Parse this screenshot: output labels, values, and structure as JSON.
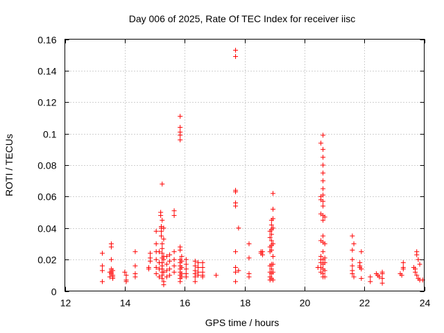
{
  "chart_data": {
    "type": "scatter",
    "title": "Day 006 of 2025, Rate Of TEC Index for receiver iisc",
    "xlabel": "GPS time / hours",
    "ylabel": "ROTI / TECUs",
    "xlim": [
      12,
      24
    ],
    "ylim": [
      0,
      0.16
    ],
    "x_ticks": [
      12,
      14,
      16,
      18,
      20,
      22,
      24
    ],
    "x_tick_labels": [
      "12",
      "14",
      "16",
      "18",
      "20",
      "22",
      "24"
    ],
    "y_ticks": [
      0,
      0.02,
      0.04,
      0.06,
      0.08,
      0.1,
      0.12,
      0.14,
      0.16
    ],
    "y_tick_labels": [
      "0",
      "0.02",
      "0.04",
      "0.06",
      "0.08",
      "0.1",
      "0.12",
      "0.14",
      "0.16"
    ],
    "grid": true,
    "marker": "+",
    "color": "#ff0000",
    "series": [
      {
        "name": "ROTI",
        "points": [
          [
            13.25,
            0.024
          ],
          [
            13.25,
            0.016
          ],
          [
            13.25,
            0.013
          ],
          [
            13.25,
            0.006
          ],
          [
            13.55,
            0.03
          ],
          [
            13.55,
            0.028
          ],
          [
            13.55,
            0.02
          ],
          [
            13.55,
            0.014
          ],
          [
            13.55,
            0.012
          ],
          [
            13.55,
            0.011
          ],
          [
            13.6,
            0.013
          ],
          [
            13.6,
            0.01
          ],
          [
            13.6,
            0.009
          ],
          [
            13.6,
            0.008
          ],
          [
            13.5,
            0.012
          ],
          [
            13.5,
            0.009
          ],
          [
            14.05,
            0.01
          ],
          [
            14.05,
            0.007
          ],
          [
            14.05,
            0.006
          ],
          [
            14.0,
            0.012
          ],
          [
            14.35,
            0.025
          ],
          [
            14.35,
            0.016
          ],
          [
            14.35,
            0.011
          ],
          [
            14.35,
            0.009
          ],
          [
            14.8,
            0.015
          ],
          [
            14.8,
            0.014
          ],
          [
            14.85,
            0.024
          ],
          [
            14.85,
            0.021
          ],
          [
            14.85,
            0.019
          ],
          [
            15.05,
            0.038
          ],
          [
            15.05,
            0.03
          ],
          [
            15.05,
            0.025
          ],
          [
            15.05,
            0.02
          ],
          [
            15.05,
            0.015
          ],
          [
            15.05,
            0.011
          ],
          [
            15.2,
            0.05
          ],
          [
            15.2,
            0.048
          ],
          [
            15.22,
            0.041
          ],
          [
            15.22,
            0.04
          ],
          [
            15.22,
            0.038
          ],
          [
            15.22,
            0.035
          ],
          [
            15.25,
            0.068
          ],
          [
            15.25,
            0.045
          ],
          [
            15.25,
            0.03
          ],
          [
            15.25,
            0.027
          ],
          [
            15.25,
            0.024
          ],
          [
            15.25,
            0.021
          ],
          [
            15.25,
            0.018
          ],
          [
            15.25,
            0.016
          ],
          [
            15.25,
            0.014
          ],
          [
            15.25,
            0.012
          ],
          [
            15.25,
            0.01
          ],
          [
            15.25,
            0.008
          ],
          [
            15.3,
            0.04
          ],
          [
            15.3,
            0.033
          ],
          [
            15.3,
            0.022
          ],
          [
            15.3,
            0.02
          ],
          [
            15.3,
            0.012
          ],
          [
            15.3,
            0.006
          ],
          [
            15.3,
            0.004
          ],
          [
            15.15,
            0.025
          ],
          [
            15.15,
            0.018
          ],
          [
            15.15,
            0.014
          ],
          [
            15.15,
            0.009
          ],
          [
            15.4,
            0.022
          ],
          [
            15.4,
            0.017
          ],
          [
            15.4,
            0.013
          ],
          [
            15.4,
            0.009
          ],
          [
            15.5,
            0.023
          ],
          [
            15.5,
            0.019
          ],
          [
            15.5,
            0.014
          ],
          [
            15.5,
            0.01
          ],
          [
            15.65,
            0.051
          ],
          [
            15.65,
            0.048
          ],
          [
            15.65,
            0.025
          ],
          [
            15.65,
            0.02
          ],
          [
            15.65,
            0.016
          ],
          [
            15.65,
            0.012
          ],
          [
            15.85,
            0.111
          ],
          [
            15.85,
            0.104
          ],
          [
            15.85,
            0.101
          ],
          [
            15.85,
            0.099
          ],
          [
            15.85,
            0.096
          ],
          [
            15.85,
            0.028
          ],
          [
            15.85,
            0.026
          ],
          [
            15.85,
            0.02
          ],
          [
            15.85,
            0.018
          ],
          [
            15.85,
            0.016
          ],
          [
            15.85,
            0.014
          ],
          [
            15.85,
            0.012
          ],
          [
            15.85,
            0.01
          ],
          [
            15.85,
            0.008
          ],
          [
            15.85,
            0.006
          ],
          [
            15.9,
            0.022
          ],
          [
            15.9,
            0.019
          ],
          [
            15.9,
            0.015
          ],
          [
            15.9,
            0.011
          ],
          [
            15.9,
            0.009
          ],
          [
            16.05,
            0.02
          ],
          [
            16.05,
            0.017
          ],
          [
            16.05,
            0.014
          ],
          [
            16.05,
            0.011
          ],
          [
            16.05,
            0.009
          ],
          [
            16.35,
            0.019
          ],
          [
            16.35,
            0.016
          ],
          [
            16.35,
            0.013
          ],
          [
            16.35,
            0.011
          ],
          [
            16.35,
            0.009
          ],
          [
            16.35,
            0.006
          ],
          [
            16.45,
            0.018
          ],
          [
            16.45,
            0.015
          ],
          [
            16.45,
            0.012
          ],
          [
            16.45,
            0.01
          ],
          [
            16.6,
            0.018
          ],
          [
            16.6,
            0.015
          ],
          [
            16.6,
            0.012
          ],
          [
            16.6,
            0.01
          ],
          [
            16.6,
            0.009
          ],
          [
            17.05,
            0.01
          ],
          [
            17.7,
            0.153
          ],
          [
            17.7,
            0.149
          ],
          [
            17.7,
            0.064
          ],
          [
            17.7,
            0.063
          ],
          [
            17.7,
            0.056
          ],
          [
            17.7,
            0.054
          ],
          [
            17.7,
            0.025
          ],
          [
            17.7,
            0.015
          ],
          [
            17.7,
            0.012
          ],
          [
            17.7,
            0.006
          ],
          [
            17.8,
            0.04
          ],
          [
            17.8,
            0.013
          ],
          [
            18.15,
            0.03
          ],
          [
            18.15,
            0.021
          ],
          [
            18.15,
            0.011
          ],
          [
            18.15,
            0.009
          ],
          [
            18.55,
            0.025
          ],
          [
            18.55,
            0.024
          ],
          [
            18.6,
            0.025
          ],
          [
            18.6,
            0.023
          ],
          [
            18.85,
            0.038
          ],
          [
            18.85,
            0.034
          ],
          [
            18.85,
            0.028
          ],
          [
            18.85,
            0.025
          ],
          [
            18.85,
            0.016
          ],
          [
            18.85,
            0.012
          ],
          [
            18.85,
            0.009
          ],
          [
            18.85,
            0.007
          ],
          [
            18.9,
            0.045
          ],
          [
            18.9,
            0.042
          ],
          [
            18.9,
            0.039
          ],
          [
            18.9,
            0.036
          ],
          [
            18.9,
            0.032
          ],
          [
            18.9,
            0.029
          ],
          [
            18.9,
            0.026
          ],
          [
            18.9,
            0.017
          ],
          [
            18.9,
            0.014
          ],
          [
            18.9,
            0.011
          ],
          [
            18.9,
            0.008
          ],
          [
            18.95,
            0.062
          ],
          [
            18.95,
            0.052
          ],
          [
            18.95,
            0.046
          ],
          [
            18.95,
            0.04
          ],
          [
            18.95,
            0.03
          ],
          [
            18.95,
            0.022
          ],
          [
            18.95,
            0.017
          ],
          [
            18.95,
            0.012
          ],
          [
            18.95,
            0.007
          ],
          [
            20.45,
            0.015
          ],
          [
            20.55,
            0.094
          ],
          [
            20.55,
            0.06
          ],
          [
            20.55,
            0.058
          ],
          [
            20.55,
            0.049
          ],
          [
            20.55,
            0.032
          ],
          [
            20.55,
            0.022
          ],
          [
            20.55,
            0.02
          ],
          [
            20.55,
            0.018
          ],
          [
            20.55,
            0.015
          ],
          [
            20.55,
            0.012
          ],
          [
            20.62,
            0.099
          ],
          [
            20.62,
            0.09
          ],
          [
            20.62,
            0.085
          ],
          [
            20.62,
            0.08
          ],
          [
            20.62,
            0.075
          ],
          [
            20.62,
            0.07
          ],
          [
            20.62,
            0.065
          ],
          [
            20.62,
            0.061
          ],
          [
            20.62,
            0.057
          ],
          [
            20.62,
            0.054
          ],
          [
            20.62,
            0.048
          ],
          [
            20.62,
            0.045
          ],
          [
            20.62,
            0.035
          ],
          [
            20.62,
            0.031
          ],
          [
            20.62,
            0.025
          ],
          [
            20.62,
            0.02
          ],
          [
            20.62,
            0.017
          ],
          [
            20.62,
            0.014
          ],
          [
            20.62,
            0.011
          ],
          [
            20.62,
            0.009
          ],
          [
            20.68,
            0.047
          ],
          [
            20.68,
            0.03
          ],
          [
            20.68,
            0.021
          ],
          [
            20.68,
            0.018
          ],
          [
            20.68,
            0.013
          ],
          [
            20.68,
            0.009
          ],
          [
            21.6,
            0.035
          ],
          [
            21.6,
            0.026
          ],
          [
            21.6,
            0.02
          ],
          [
            21.6,
            0.016
          ],
          [
            21.6,
            0.013
          ],
          [
            21.6,
            0.011
          ],
          [
            21.65,
            0.03
          ],
          [
            21.65,
            0.009
          ],
          [
            21.85,
            0.018
          ],
          [
            21.85,
            0.016
          ],
          [
            21.85,
            0.015
          ],
          [
            21.9,
            0.025
          ],
          [
            21.9,
            0.014
          ],
          [
            21.9,
            0.008
          ],
          [
            22.2,
            0.009
          ],
          [
            22.2,
            0.006
          ],
          [
            22.4,
            0.011
          ],
          [
            22.45,
            0.01
          ],
          [
            22.5,
            0.009
          ],
          [
            22.6,
            0.012
          ],
          [
            22.6,
            0.011
          ],
          [
            22.6,
            0.008
          ],
          [
            22.6,
            0.005
          ],
          [
            23.2,
            0.011
          ],
          [
            23.25,
            0.01
          ],
          [
            23.3,
            0.018
          ],
          [
            23.3,
            0.015
          ],
          [
            23.3,
            0.014
          ],
          [
            23.65,
            0.015
          ],
          [
            23.7,
            0.014
          ],
          [
            23.7,
            0.012
          ],
          [
            23.75,
            0.025
          ],
          [
            23.75,
            0.023
          ],
          [
            23.75,
            0.01
          ],
          [
            23.8,
            0.008
          ],
          [
            23.8,
            0.02
          ],
          [
            23.85,
            0.017
          ],
          [
            23.85,
            0.007
          ],
          [
            23.95,
            0.007
          ]
        ]
      }
    ]
  }
}
